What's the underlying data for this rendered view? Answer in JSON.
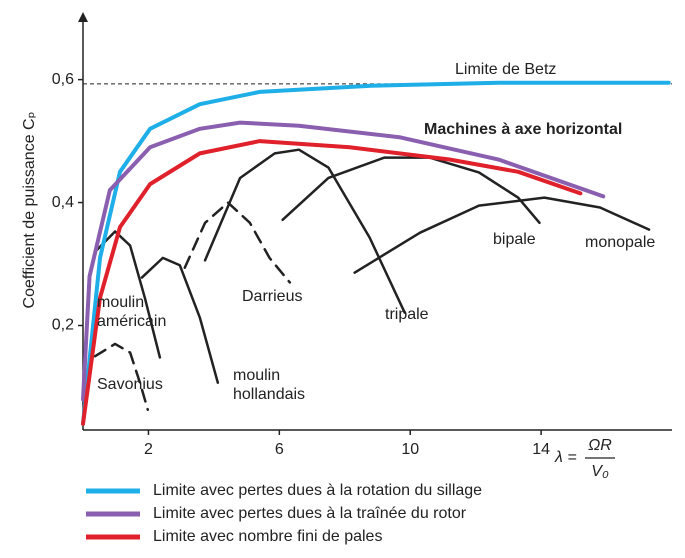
{
  "chart_data": {
    "type": "line",
    "y_label": "Coefficient de puissance Cₚ",
    "x_label": {
      "symbol": "λ =",
      "numerator": "ΩR",
      "denominator": "V₀"
    },
    "xlim": [
      0,
      18
    ],
    "ylim": [
      0.03,
      0.71
    ],
    "xticks": [
      2,
      6,
      10,
      14
    ],
    "yticks": [
      {
        "value": 0.2,
        "label": "0,2"
      },
      {
        "value": 0.4,
        "label": "0,4"
      },
      {
        "value": 0.6,
        "label": "0,6"
      }
    ],
    "betz": {
      "label": "Limite de Betz",
      "value": 0.593
    },
    "annotation": "Machines à axe horizontal",
    "series": [
      {
        "name": "Limite avec pertes dues à la rotation du sillage",
        "color": "#1eaee8",
        "x": [
          0,
          0.52,
          1.13,
          2.05,
          3.57,
          5.4,
          8.8,
          12.7,
          17.9
        ],
        "values": [
          0.04,
          0.31,
          0.45,
          0.52,
          0.56,
          0.58,
          0.59,
          0.595,
          0.595
        ]
      },
      {
        "name": "Limite avec pertes dues à la traînée du rotor",
        "color": "#8a5fb0",
        "x": [
          0,
          0.2,
          0.82,
          2.05,
          3.57,
          4.8,
          6.6,
          9.7,
          12.7,
          15.9
        ],
        "values": [
          0.08,
          0.28,
          0.42,
          0.49,
          0.52,
          0.53,
          0.525,
          0.506,
          0.47,
          0.41
        ]
      },
      {
        "name": "Limite avec nombre fini de pales",
        "color": "#e0202a",
        "x": [
          0,
          0.52,
          1.13,
          2.05,
          3.57,
          5.4,
          8.15,
          11.2,
          13.3,
          15.2
        ],
        "values": [
          0.04,
          0.245,
          0.36,
          0.43,
          0.48,
          0.5,
          0.49,
          0.47,
          0.45,
          0.415
        ]
      }
    ],
    "rotor_curves": [
      {
        "label": [
          "Savonius"
        ],
        "color": "#222222",
        "dashed": true,
        "x": [
          0.37,
          0.98,
          1.44,
          1.74,
          1.98
        ],
        "values": [
          0.15,
          0.17,
          0.156,
          0.107,
          0.063
        ]
      },
      {
        "label": [
          "moulin",
          "américain"
        ],
        "color": "#222222",
        "dashed": false,
        "x": [
          0.37,
          0.98,
          1.44,
          1.89,
          2.35
        ],
        "values": [
          0.32,
          0.353,
          0.33,
          0.245,
          0.148
        ]
      },
      {
        "label": [
          "moulin",
          "hollandais"
        ],
        "color": "#222222",
        "dashed": false,
        "x": [
          1.8,
          2.44,
          2.96,
          3.57,
          4.12
        ],
        "values": [
          0.278,
          0.31,
          0.298,
          0.213,
          0.107
        ]
      },
      {
        "label": [
          "Darrieus"
        ],
        "color": "#222222",
        "dashed": true,
        "x": [
          3.11,
          3.73,
          4.43,
          5.1,
          5.7,
          6.32
        ],
        "values": [
          0.294,
          0.367,
          0.4,
          0.367,
          0.31,
          0.27
        ]
      },
      {
        "label": [
          "tripale"
        ],
        "color": "#222222",
        "dashed": false,
        "x": [
          3.73,
          4.8,
          5.86,
          6.6,
          7.5,
          8.76,
          9.83
        ],
        "values": [
          0.306,
          0.44,
          0.48,
          0.486,
          0.457,
          0.343,
          0.221
        ]
      },
      {
        "label": [
          "bipale"
        ],
        "color": "#222222",
        "dashed": false,
        "x": [
          6.1,
          7.5,
          9.2,
          10.6,
          12.1,
          13.3,
          13.95
        ],
        "values": [
          0.372,
          0.44,
          0.473,
          0.473,
          0.449,
          0.408,
          0.367
        ]
      },
      {
        "label": [
          "monopale"
        ],
        "color": "#222222",
        "dashed": false,
        "x": [
          8.3,
          10.3,
          12.1,
          14.1,
          15.8,
          17.3
        ],
        "values": [
          0.286,
          0.351,
          0.395,
          0.408,
          0.392,
          0.356
        ]
      }
    ]
  }
}
